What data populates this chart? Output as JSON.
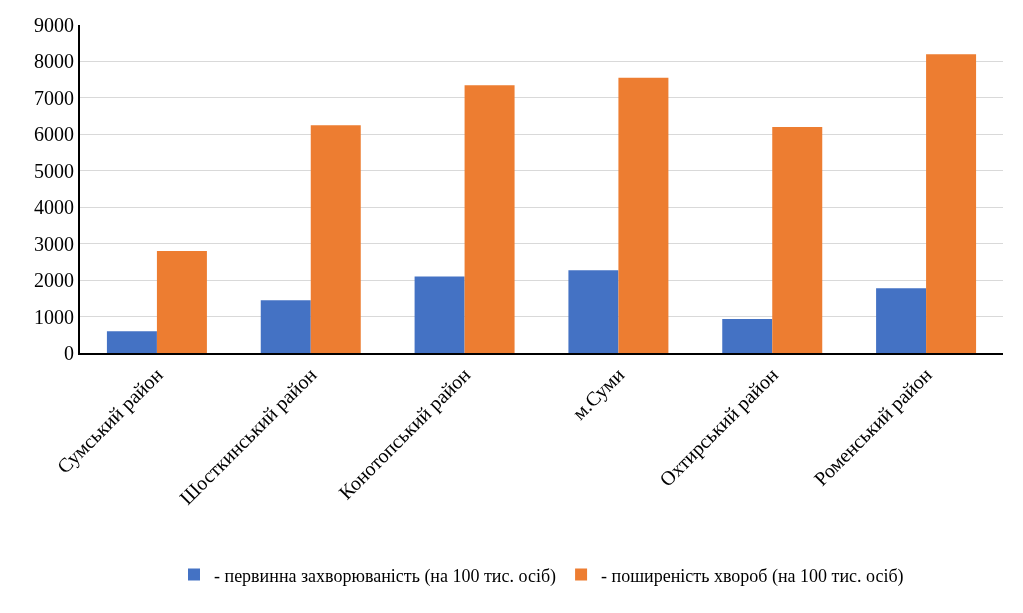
{
  "chart_data": {
    "type": "bar",
    "categories": [
      "Сумський район",
      "Шосткинський район",
      "Конотопський район",
      "м.Суми",
      "Охтирський район",
      "Роменський район"
    ],
    "series": [
      {
        "name": "- первинна захворюваність (на 100 тис. осіб)",
        "color": "#4472c4",
        "values": [
          600,
          1450,
          2100,
          2270,
          930,
          1780
        ]
      },
      {
        "name": "- поширеність хвороб (на 100 тис. осіб)",
        "color": "#ed7d31",
        "values": [
          2800,
          6250,
          7350,
          7550,
          6200,
          8200
        ]
      }
    ],
    "ylim": [
      0,
      9000
    ],
    "yticks": [
      0,
      1000,
      2000,
      3000,
      4000,
      5000,
      6000,
      7000,
      8000,
      9000
    ],
    "grid": "y",
    "legend": "bottom"
  }
}
